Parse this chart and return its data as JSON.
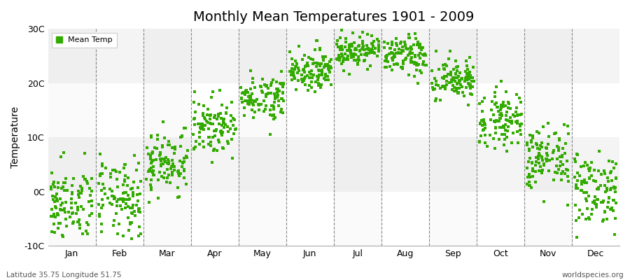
{
  "title": "Monthly Mean Temperatures 1901 - 2009",
  "ylabel": "Temperature",
  "footer_left": "Latitude 35.75 Longitude 51.75",
  "footer_right": "worldspecies.org",
  "legend_label": "Mean Temp",
  "dot_color": "#33aa00",
  "background_color": "#ffffff",
  "band_colors_h": [
    "#ffffff",
    "#ebebeb"
  ],
  "band_colors_v": [
    "#f5f5f5",
    "#ffffff"
  ],
  "ylim": [
    -10,
    30
  ],
  "ytick_labels": [
    "-10C",
    "0C",
    "10C",
    "20C",
    "30C"
  ],
  "ytick_values": [
    -10,
    0,
    10,
    20,
    30
  ],
  "months": [
    "Jan",
    "Feb",
    "Mar",
    "Apr",
    "May",
    "Jun",
    "Jul",
    "Aug",
    "Sep",
    "Oct",
    "Nov",
    "Dec"
  ],
  "mean_temps": [
    -2.5,
    -1.5,
    5.5,
    12.0,
    17.5,
    22.5,
    26.0,
    25.0,
    20.5,
    13.5,
    6.0,
    0.5
  ],
  "std_temps": [
    3.5,
    3.5,
    3.0,
    2.5,
    2.0,
    1.8,
    1.5,
    1.8,
    2.0,
    2.5,
    3.0,
    3.5
  ],
  "n_years": 109,
  "seed": 42,
  "title_fontsize": 14,
  "axis_fontsize": 9,
  "ylabel_fontsize": 10,
  "footer_fontsize": 7.5
}
